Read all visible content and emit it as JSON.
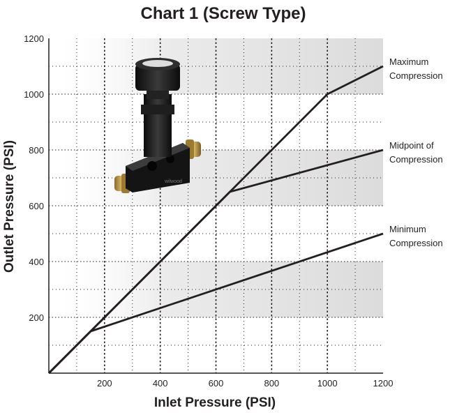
{
  "chart_data": {
    "type": "line",
    "title": "Chart 1 (Screw Type)",
    "xlabel": "Inlet Pressure (PSI)",
    "ylabel": "Outlet Pressure (PSI)",
    "xlim": [
      0,
      1200
    ],
    "ylim": [
      0,
      1200
    ],
    "x_ticks": [
      "200",
      "400",
      "600",
      "800",
      "1000",
      "1200"
    ],
    "y_ticks": [
      "200",
      "400",
      "600",
      "800",
      "1000",
      "1200"
    ],
    "grid": true,
    "shaded_bands": [
      [
        200,
        400
      ],
      [
        600,
        800
      ],
      [
        1000,
        1200
      ]
    ],
    "colors": {
      "line": "#231f20",
      "band": "#e3e3e3",
      "background": "#ffffff"
    },
    "series": [
      {
        "name": "Maximum Compression",
        "label_lines": [
          "Maximum",
          "Compression"
        ],
        "x": [
          0,
          150,
          650,
          1000,
          1200
        ],
        "y": [
          0,
          150,
          650,
          1000,
          1100
        ]
      },
      {
        "name": "Midpoint of Compression",
        "label_lines": [
          "Midpoint of",
          "Compression"
        ],
        "x": [
          0,
          150,
          650,
          1200
        ],
        "y": [
          0,
          150,
          650,
          800
        ]
      },
      {
        "name": "Minimum Compression",
        "label_lines": [
          "Minimum",
          "Compression"
        ],
        "x": [
          0,
          150,
          1200
        ],
        "y": [
          0,
          150,
          500
        ]
      }
    ],
    "inset_image": {
      "icon": "proportioning-valve-icon",
      "label": "wilwood"
    }
  }
}
